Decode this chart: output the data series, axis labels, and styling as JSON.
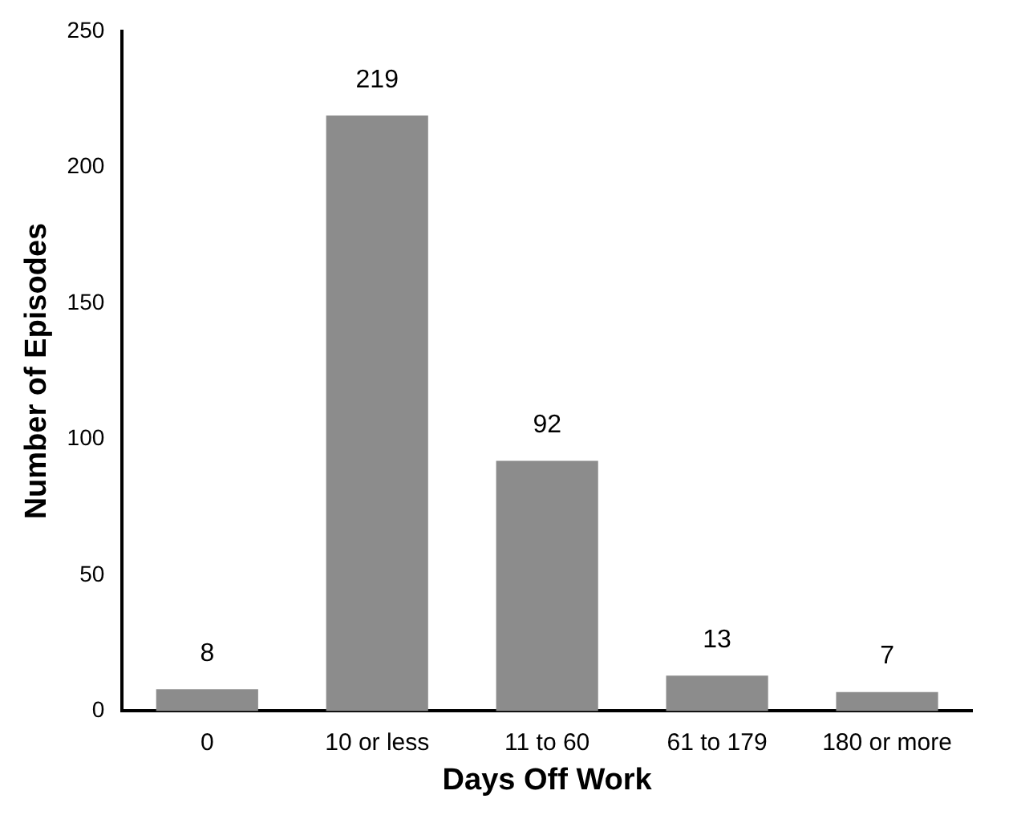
{
  "chart_data": {
    "type": "bar",
    "xlabel": "Days Off Work",
    "ylabel": "Number of Episodes",
    "categories": [
      "0",
      "10 or less",
      "11 to 60",
      "61 to 179",
      "180 or more"
    ],
    "values": [
      8,
      219,
      92,
      13,
      7
    ],
    "color": "#8c8c8c",
    "ylim": [
      0,
      250
    ],
    "yticks": [
      0,
      50,
      100,
      150,
      200,
      250
    ],
    "grid": false,
    "legend": false,
    "data_labels": true
  }
}
